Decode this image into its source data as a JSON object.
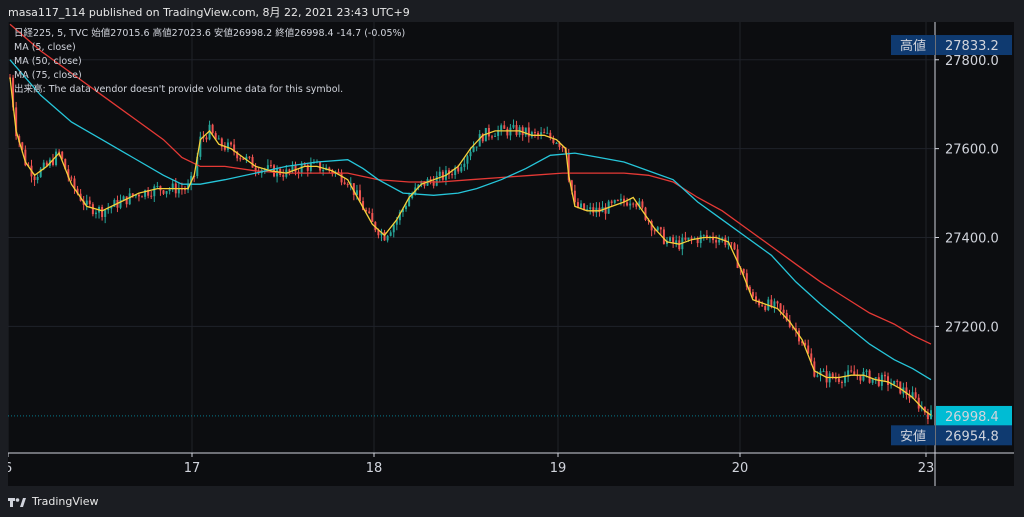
{
  "header": {
    "publisher_line": "masa117_114 published on TradingView.com, 8月 22, 2021 23:43 UTC+9"
  },
  "legend": {
    "symbol_line_prefix": "日経225, 5, TVC",
    "ohlc": [
      {
        "label": "始値",
        "value": "27015.6"
      },
      {
        "label": "高値",
        "value": "27023.6"
      },
      {
        "label": "安値",
        "value": "26998.2"
      },
      {
        "label": "終値",
        "value": "26998.4"
      }
    ],
    "change": "-14.7 (-0.05%)",
    "ma_lines": [
      "MA (5, close)",
      "MA (50, close)",
      "MA (75, close)"
    ],
    "volume_note": "出来高: The data vendor doesn't provide volume data for this symbol."
  },
  "footer": {
    "brand": "TradingView"
  },
  "colors": {
    "candle_up": "#26a69a",
    "candle_down": "#ef5350",
    "ma5": "#f5d13b",
    "ma50": "#26c6da",
    "ma75": "#e53935",
    "price_label_bg": "#0f3a70",
    "last_price_bg": "#00bcd4"
  },
  "chart_data": {
    "type": "candlestick",
    "y_ticks": [
      "27800.0",
      "27600.0",
      "27400.0",
      "27200.0"
    ],
    "y_tick_values": [
      27800,
      27600,
      27400,
      27200
    ],
    "x_ticks": [
      "6",
      "17",
      "18",
      "19",
      "20",
      "23"
    ],
    "ylim": [
      26915,
      27885
    ],
    "high_label": {
      "text": "高値",
      "value": "27833.2"
    },
    "low_label": {
      "text": "安値",
      "value": "26954.8"
    },
    "last_price": "26998.4",
    "ma5_path": [
      [
        0,
        27760
      ],
      [
        2,
        27640
      ],
      [
        5,
        27570
      ],
      [
        8,
        27540
      ],
      [
        12,
        27560
      ],
      [
        16,
        27590
      ],
      [
        20,
        27520
      ],
      [
        25,
        27470
      ],
      [
        30,
        27460
      ],
      [
        36,
        27480
      ],
      [
        42,
        27500
      ],
      [
        48,
        27510
      ],
      [
        54,
        27510
      ],
      [
        58,
        27510
      ],
      [
        60,
        27540
      ],
      [
        62,
        27620
      ],
      [
        65,
        27640
      ],
      [
        68,
        27610
      ],
      [
        72,
        27600
      ],
      [
        76,
        27580
      ],
      [
        80,
        27560
      ],
      [
        85,
        27550
      ],
      [
        90,
        27545
      ],
      [
        96,
        27560
      ],
      [
        100,
        27560
      ],
      [
        105,
        27550
      ],
      [
        110,
        27530
      ],
      [
        114,
        27480
      ],
      [
        118,
        27430
      ],
      [
        122,
        27405
      ],
      [
        126,
        27440
      ],
      [
        130,
        27490
      ],
      [
        134,
        27520
      ],
      [
        138,
        27530
      ],
      [
        142,
        27540
      ],
      [
        146,
        27560
      ],
      [
        150,
        27600
      ],
      [
        154,
        27630
      ],
      [
        158,
        27640
      ],
      [
        162,
        27640
      ],
      [
        166,
        27640
      ],
      [
        170,
        27630
      ],
      [
        174,
        27630
      ],
      [
        178,
        27620
      ],
      [
        181,
        27600
      ],
      [
        182,
        27540
      ],
      [
        184,
        27470
      ],
      [
        188,
        27460
      ],
      [
        192,
        27460
      ],
      [
        196,
        27470
      ],
      [
        200,
        27480
      ],
      [
        203,
        27490
      ],
      [
        206,
        27460
      ],
      [
        210,
        27420
      ],
      [
        214,
        27390
      ],
      [
        218,
        27385
      ],
      [
        222,
        27395
      ],
      [
        226,
        27400
      ],
      [
        230,
        27400
      ],
      [
        234,
        27390
      ],
      [
        238,
        27330
      ],
      [
        242,
        27260
      ],
      [
        246,
        27250
      ],
      [
        250,
        27240
      ],
      [
        254,
        27210
      ],
      [
        258,
        27170
      ],
      [
        262,
        27100
      ],
      [
        266,
        27085
      ],
      [
        270,
        27085
      ],
      [
        274,
        27090
      ],
      [
        278,
        27090
      ],
      [
        282,
        27080
      ],
      [
        286,
        27075
      ],
      [
        290,
        27060
      ],
      [
        294,
        27040
      ],
      [
        298,
        27010
      ],
      [
        300,
        27000
      ]
    ],
    "ma50_path": [
      [
        0,
        27800
      ],
      [
        10,
        27720
      ],
      [
        20,
        27660
      ],
      [
        30,
        27620
      ],
      [
        40,
        27580
      ],
      [
        50,
        27540
      ],
      [
        56,
        27520
      ],
      [
        62,
        27520
      ],
      [
        70,
        27530
      ],
      [
        80,
        27545
      ],
      [
        90,
        27560
      ],
      [
        100,
        27570
      ],
      [
        110,
        27575
      ],
      [
        115,
        27555
      ],
      [
        120,
        27530
      ],
      [
        128,
        27500
      ],
      [
        138,
        27495
      ],
      [
        146,
        27500
      ],
      [
        152,
        27510
      ],
      [
        160,
        27530
      ],
      [
        168,
        27555
      ],
      [
        176,
        27585
      ],
      [
        184,
        27590
      ],
      [
        192,
        27580
      ],
      [
        200,
        27570
      ],
      [
        208,
        27550
      ],
      [
        216,
        27530
      ],
      [
        224,
        27480
      ],
      [
        232,
        27440
      ],
      [
        240,
        27400
      ],
      [
        248,
        27360
      ],
      [
        256,
        27300
      ],
      [
        264,
        27250
      ],
      [
        272,
        27205
      ],
      [
        280,
        27160
      ],
      [
        288,
        27125
      ],
      [
        294,
        27105
      ],
      [
        300,
        27080
      ]
    ],
    "ma75_path": [
      [
        0,
        27880
      ],
      [
        10,
        27820
      ],
      [
        20,
        27770
      ],
      [
        30,
        27720
      ],
      [
        40,
        27670
      ],
      [
        50,
        27620
      ],
      [
        56,
        27580
      ],
      [
        62,
        27560
      ],
      [
        70,
        27560
      ],
      [
        80,
        27550
      ],
      [
        90,
        27545
      ],
      [
        100,
        27545
      ],
      [
        110,
        27545
      ],
      [
        120,
        27530
      ],
      [
        130,
        27525
      ],
      [
        140,
        27525
      ],
      [
        150,
        27530
      ],
      [
        160,
        27535
      ],
      [
        170,
        27540
      ],
      [
        180,
        27545
      ],
      [
        190,
        27545
      ],
      [
        200,
        27545
      ],
      [
        208,
        27540
      ],
      [
        216,
        27525
      ],
      [
        224,
        27490
      ],
      [
        232,
        27460
      ],
      [
        240,
        27420
      ],
      [
        248,
        27380
      ],
      [
        256,
        27340
      ],
      [
        264,
        27300
      ],
      [
        272,
        27265
      ],
      [
        280,
        27230
      ],
      [
        288,
        27205
      ],
      [
        294,
        27180
      ],
      [
        300,
        27160
      ]
    ]
  }
}
